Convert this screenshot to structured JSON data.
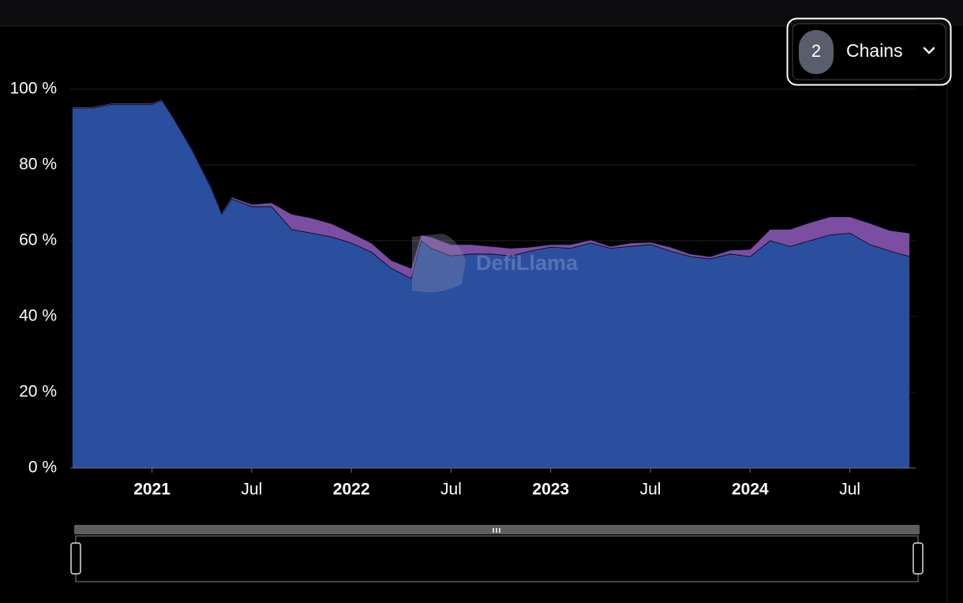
{
  "chain_selector": {
    "count": 2,
    "label": "Chains"
  },
  "chart_data": {
    "type": "area",
    "stacked": true,
    "watermark": "DefiLlama",
    "x": [
      2020.6,
      2020.7,
      2020.8,
      2020.9,
      2021.0,
      2021.05,
      2021.1,
      2021.2,
      2021.3,
      2021.35,
      2021.4,
      2021.5,
      2021.6,
      2021.7,
      2021.8,
      2021.9,
      2022.0,
      2022.1,
      2022.2,
      2022.3,
      2022.35,
      2022.4,
      2022.5,
      2022.6,
      2022.7,
      2022.8,
      2022.9,
      2023.0,
      2023.1,
      2023.2,
      2023.3,
      2023.4,
      2023.5,
      2023.6,
      2023.7,
      2023.8,
      2023.9,
      2024.0,
      2024.1,
      2024.2,
      2024.3,
      2024.4,
      2024.5,
      2024.6,
      2024.7,
      2024.8
    ],
    "series": [
      {
        "color": "#2b4f9f",
        "values": [
          95,
          95,
          96,
          96,
          96,
          97,
          93,
          84,
          73.5,
          67,
          71,
          69,
          69,
          63,
          62,
          61,
          59.4,
          57,
          52.7,
          50,
          60,
          58,
          56,
          56.5,
          56.5,
          56,
          57.3,
          58.3,
          58,
          59.4,
          58,
          58.5,
          59,
          57.3,
          55.8,
          55.2,
          56.5,
          55.8,
          60,
          58.5,
          60,
          61.5,
          62,
          59,
          57.3,
          55.8
        ]
      },
      {
        "color": "#7b4ea3",
        "values": [
          0.3,
          0.3,
          0.3,
          0.3,
          0.3,
          0.3,
          0.3,
          0.4,
          0.5,
          0.5,
          0.5,
          0.6,
          1,
          4,
          4,
          3.5,
          2.6,
          2.4,
          2.1,
          2.7,
          1.5,
          3,
          3,
          2.5,
          2,
          2,
          1,
          0.7,
          1,
          0.8,
          0.5,
          0.9,
          0.6,
          1,
          0.7,
          0.6,
          1,
          1.9,
          3,
          4.5,
          4.8,
          4.8,
          4.3,
          5.6,
          5.4,
          6.2
        ]
      }
    ],
    "xlim": [
      2020.59,
      2024.83
    ],
    "xticks": [
      2021,
      {
        "value": 2021.5,
        "label": "Jul"
      },
      2022,
      {
        "value": 2022.5,
        "label": "Jul"
      },
      2023,
      {
        "value": 2023.5,
        "label": "Jul"
      },
      2024,
      {
        "value": 2024.5,
        "label": "Jul"
      }
    ],
    "ylim": [
      0,
      100
    ],
    "yticks": [
      {
        "value": 0,
        "label": "0 %"
      },
      {
        "value": 20,
        "label": "20 %"
      },
      {
        "value": 40,
        "label": "40 %"
      },
      {
        "value": 60,
        "label": "60 %"
      },
      {
        "value": 80,
        "label": "80 %"
      },
      {
        "value": 100,
        "label": "100 %"
      }
    ],
    "grid": true
  }
}
